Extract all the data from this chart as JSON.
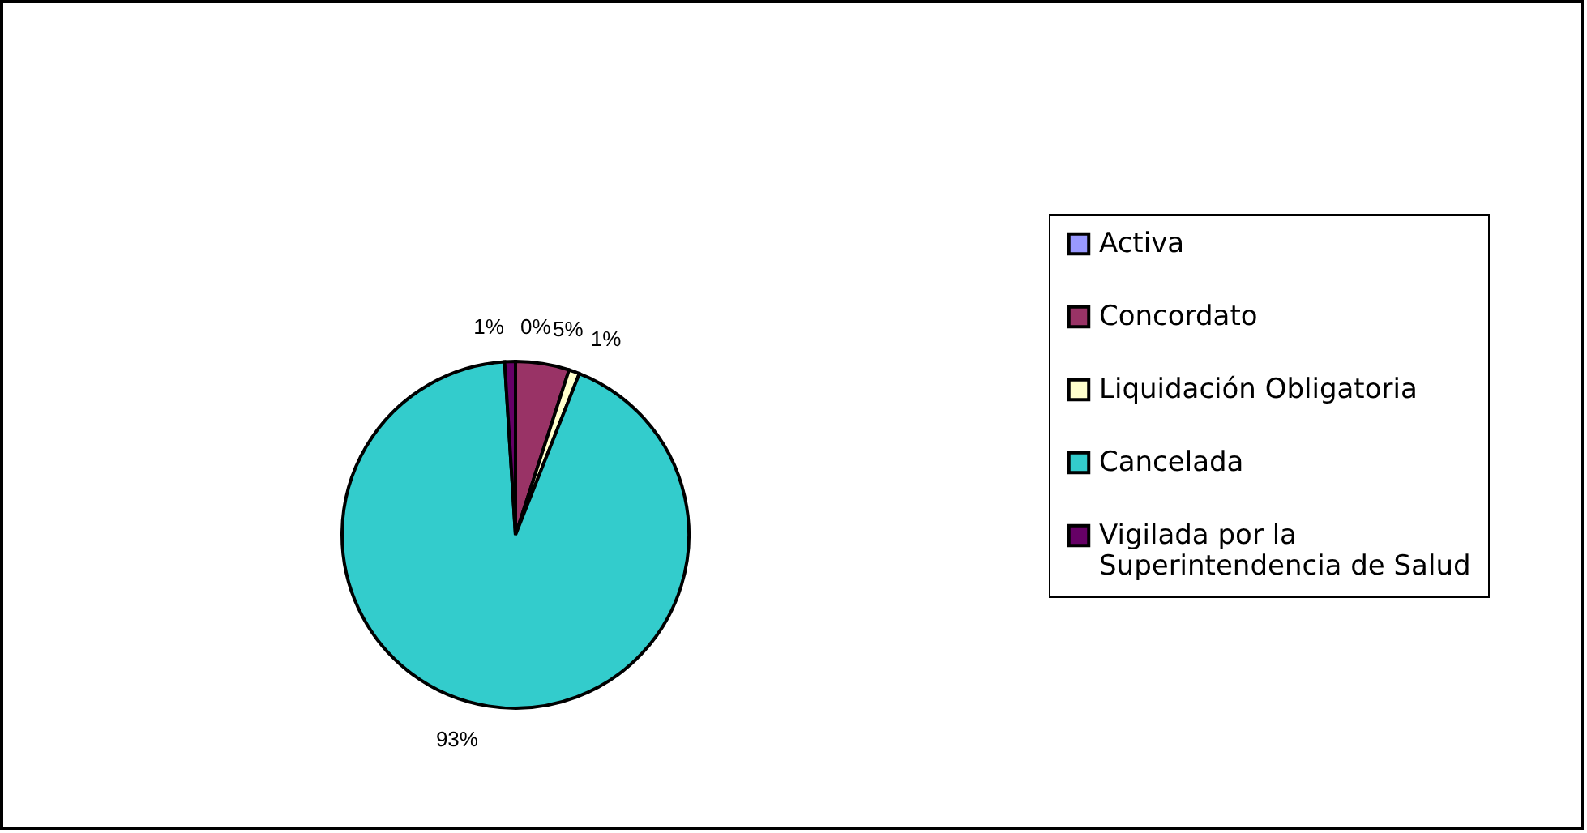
{
  "chart_data": {
    "type": "pie",
    "categories": [
      "Activa",
      "Concordato",
      "Liquidación Obligatoria",
      "Cancelada",
      "Vigilada por la Superintendencia de Salud"
    ],
    "values": [
      0,
      5,
      1,
      93,
      1
    ],
    "colors": [
      "#9999ff",
      "#993366",
      "#ffffcc",
      "#33cccc",
      "#660066"
    ],
    "value_labels": [
      "0%",
      "5%",
      "1%",
      "93%",
      "1%"
    ],
    "legend": "right"
  }
}
